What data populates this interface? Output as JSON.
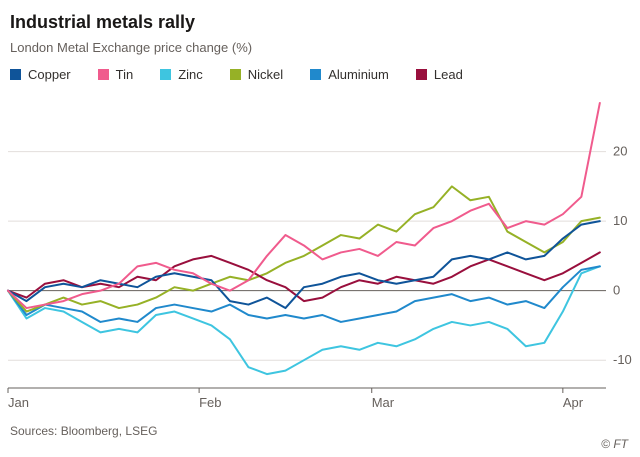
{
  "chart_data": {
    "type": "line",
    "title": "Industrial metals rally",
    "subtitle": "London Metal Exchange price change (%)",
    "x_unit": "days since start of January",
    "xlim": [
      0,
      97
    ],
    "ylim": [
      -14,
      28
    ],
    "grid": "horizontal",
    "legend_position": "top",
    "yticks": [
      -10,
      0,
      10,
      20
    ],
    "xticks": [
      {
        "label": "Jan",
        "x": 0
      },
      {
        "label": "Feb",
        "x": 31
      },
      {
        "label": "Mar",
        "x": 59
      },
      {
        "label": "Apr",
        "x": 90
      }
    ],
    "x": [
      0,
      3,
      6,
      9,
      12,
      15,
      18,
      21,
      24,
      27,
      30,
      33,
      36,
      39,
      42,
      45,
      48,
      51,
      54,
      57,
      60,
      63,
      66,
      69,
      72,
      75,
      78,
      81,
      84,
      87,
      90,
      93,
      96
    ],
    "series": [
      {
        "name": "Copper",
        "color": "#0f5499",
        "values": [
          0,
          -1.5,
          0.5,
          1,
          0.5,
          1.5,
          1,
          0.5,
          2,
          2.5,
          2,
          1.5,
          -1.5,
          -2,
          -1,
          -2.5,
          0.5,
          1,
          2,
          2.5,
          1.5,
          1,
          1.5,
          2,
          4.5,
          5,
          4.5,
          5.5,
          4.5,
          5,
          7.5,
          9.5,
          10
        ]
      },
      {
        "name": "Tin",
        "color": "#f05b8d",
        "values": [
          0,
          -2.5,
          -2,
          -1.5,
          -0.5,
          0,
          1,
          3.5,
          4,
          3,
          2.5,
          1,
          0,
          1.5,
          5,
          8,
          6.5,
          4.5,
          5.5,
          6,
          5,
          7,
          6.5,
          9,
          10,
          11.5,
          12.5,
          9,
          10,
          9.5,
          11,
          13.5,
          27
        ]
      },
      {
        "name": "Zinc",
        "color": "#3ec5e0",
        "values": [
          0,
          -4,
          -2.5,
          -3,
          -4.5,
          -6,
          -5.5,
          -6,
          -3.5,
          -3,
          -4,
          -5,
          -7,
          -11,
          -12,
          -11.5,
          -10,
          -8.5,
          -8,
          -8.5,
          -7.5,
          -8,
          -7,
          -5.5,
          -4.5,
          -5,
          -4.5,
          -5.5,
          -8,
          -7.5,
          -3,
          2.5,
          3.5
        ]
      },
      {
        "name": "Nickel",
        "color": "#96b126",
        "values": [
          0,
          -3,
          -2,
          -1,
          -2,
          -1.5,
          -2.5,
          -2,
          -1,
          0.5,
          0,
          1,
          2,
          1.5,
          2.5,
          4,
          5,
          6.5,
          8,
          7.5,
          9.5,
          8.5,
          11,
          12,
          15,
          13,
          13.5,
          8.5,
          7,
          5.5,
          7,
          10,
          10.5
        ]
      },
      {
        "name": "Aluminium",
        "color": "#2089cc",
        "values": [
          0,
          -3.5,
          -2,
          -2.5,
          -3,
          -4.5,
          -4,
          -4.5,
          -2.5,
          -2,
          -2.5,
          -3,
          -2,
          -3.5,
          -4,
          -3.5,
          -4,
          -3.5,
          -4.5,
          -4,
          -3.5,
          -3,
          -1.5,
          -1,
          -0.5,
          -1.5,
          -1,
          -2,
          -1.5,
          -2.5,
          0.5,
          3,
          3.5
        ]
      },
      {
        "name": "Lead",
        "color": "#990f3d",
        "values": [
          0,
          -1,
          1,
          1.5,
          0.5,
          1,
          0.5,
          2,
          1.5,
          3.5,
          4.5,
          5,
          4,
          3,
          1.5,
          0.5,
          -1.5,
          -1,
          0.5,
          1.5,
          1,
          2,
          1.5,
          1,
          2,
          3.5,
          4.5,
          3.5,
          2.5,
          1.5,
          2.5,
          4,
          5.5
        ]
      }
    ]
  },
  "footer": {
    "sources": "Sources: Bloomberg, LSEG",
    "copyright": "© FT"
  }
}
